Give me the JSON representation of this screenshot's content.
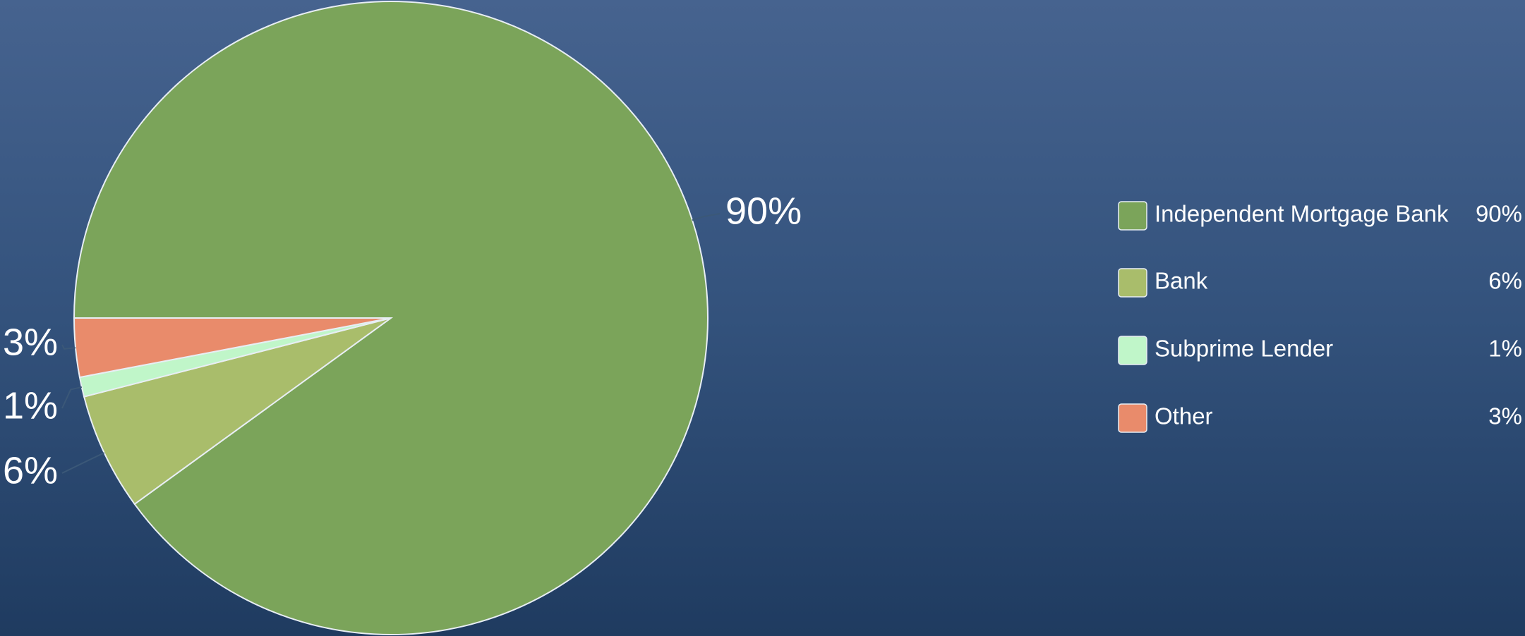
{
  "chart_data": {
    "type": "pie",
    "categories": [
      "Independent Mortgage Bank",
      "Bank",
      "Subprime Lender",
      "Other"
    ],
    "values": [
      90,
      6,
      1,
      3
    ],
    "value_labels": [
      "90%",
      "6%",
      "1%",
      "3%"
    ],
    "colors": [
      "#7ba45a",
      "#a9bd6b",
      "#c0f6c9",
      "#e98b6b"
    ],
    "legend": "right"
  }
}
